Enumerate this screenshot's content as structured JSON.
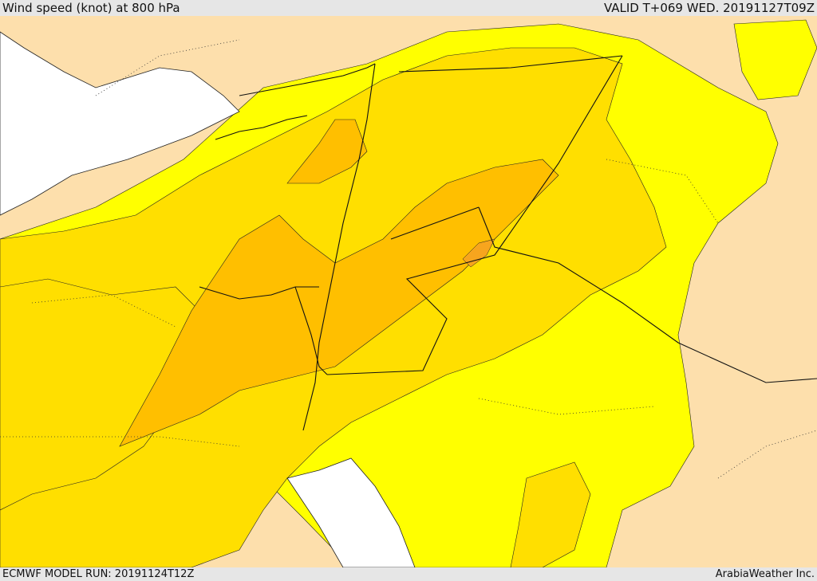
{
  "header": {
    "title": "Wind speed (knot) at 800 hPa",
    "valid": "VALID T+069 WED. 20191127T09Z"
  },
  "footer": {
    "run": "ECMWF MODEL RUN: 20191124T12Z",
    "credit": "ArabiaWeather Inc."
  },
  "colors": {
    "sea": "#ffffff",
    "band_light": "#fddfac",
    "band_yellow": "#ffff00",
    "band_gold": "#ffdf00",
    "band_orange": "#ffbf00",
    "band_dark": "#f7a51e",
    "borders": "#111111"
  }
}
